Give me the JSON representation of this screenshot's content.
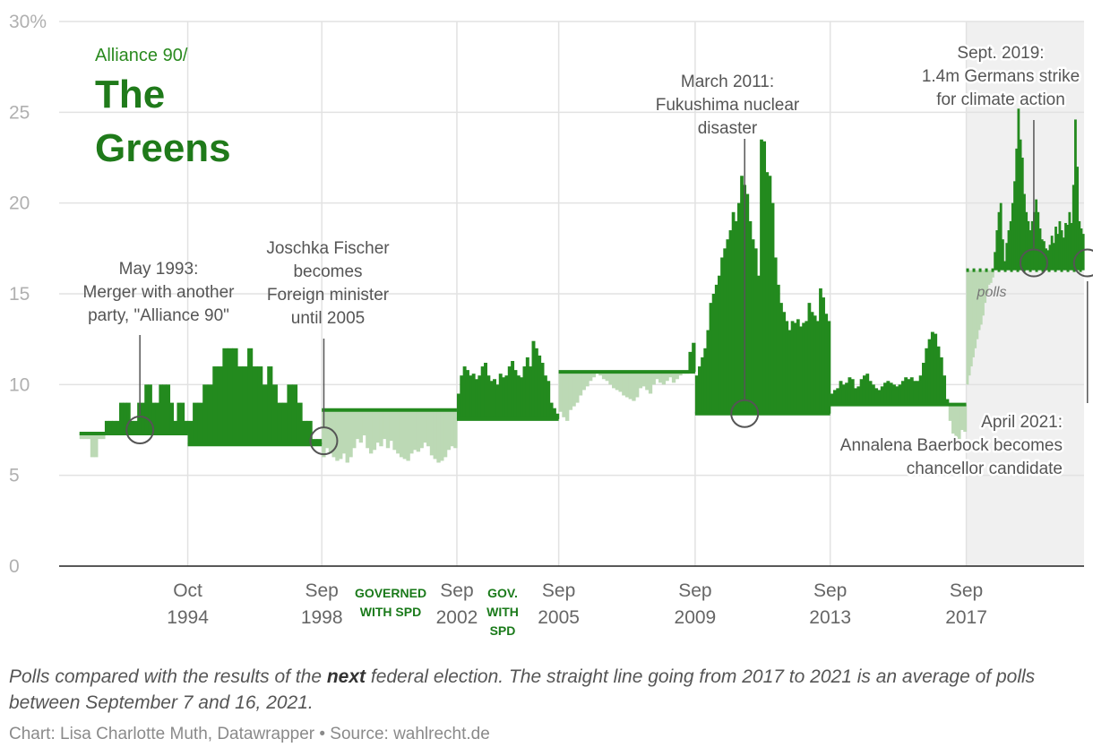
{
  "chart_data": {
    "type": "bar",
    "title_prefix": "Alliance 90/",
    "title_line1": "The",
    "title_line2": "Greens",
    "y_axis": {
      "min": 0,
      "max": 30,
      "ticks": [
        0,
        5,
        10,
        15,
        20,
        25,
        30
      ],
      "tick_labels": [
        "0",
        "5",
        "10",
        "15",
        "20",
        "25",
        "30%"
      ]
    },
    "x_ticks": [
      {
        "line1": "Oct",
        "line2": "1994",
        "x": 1994.79
      },
      {
        "line1": "Sep",
        "line2": "1998",
        "x": 1998.74
      },
      {
        "line1": "Sep",
        "line2": "2002",
        "x": 2002.72
      },
      {
        "line1": "Sep",
        "line2": "2005",
        "x": 2005.72
      },
      {
        "line1": "Sep",
        "line2": "2009",
        "x": 2009.74
      },
      {
        "line1": "Sep",
        "line2": "2013",
        "x": 2013.72
      },
      {
        "line1": "Sep",
        "line2": "2017",
        "x": 2017.73
      }
    ],
    "x_range": [
      1991.0,
      2021.2
    ],
    "polls_shaded_region": {
      "from": 2017.73,
      "to": 2021.2,
      "label": "polls"
    },
    "governed_periods": [
      {
        "label_lines": [
          "GOVERNED",
          "WITH SPD"
        ]
      },
      {
        "label_lines": [
          "GOV.",
          "WITH",
          "SPD"
        ]
      }
    ],
    "periods": [
      {
        "start": 1991.6,
        "end": 1994.79,
        "result": 7.3,
        "polls": [
          7.0,
          7.0,
          7.0,
          6.0,
          6.0,
          7.0,
          7.0,
          8.0,
          8.0,
          8.0,
          8.0,
          9.0,
          9.0,
          9.0,
          8.0,
          8.0,
          9.0,
          9.0,
          10.0,
          10.0,
          9.0,
          9.0,
          10.0,
          10.0,
          10.0,
          9.0,
          8.0,
          9.0,
          9.0,
          8.0
        ]
      },
      {
        "start": 1994.79,
        "end": 1998.74,
        "result": 6.7,
        "polls": [
          8.0,
          9.0,
          9.0,
          10.0,
          10.0,
          11.0,
          11.0,
          12.0,
          12.0,
          12.0,
          11.0,
          11.0,
          12.0,
          11.0,
          11.0,
          10.0,
          11.0,
          10.0,
          9.0,
          9.0,
          10.0,
          10.0,
          9.0,
          8.0,
          8.0,
          7.0,
          7.0
        ]
      },
      {
        "start": 1998.74,
        "end": 2002.72,
        "result": 8.6,
        "polls": [
          6.0,
          6.5,
          6.2,
          6.0,
          5.8,
          5.9,
          6.2,
          5.7,
          6.0,
          6.5,
          7.0,
          6.8,
          7.2,
          6.5,
          6.2,
          6.4,
          6.8,
          6.6,
          7.0,
          6.5,
          6.9,
          6.4,
          6.2,
          6.0,
          5.9,
          5.8,
          6.2,
          6.4,
          6.3,
          6.5,
          6.8,
          6.6,
          6.1,
          5.9,
          5.7,
          5.8,
          6.0,
          6.4,
          6.6,
          6.5
        ]
      },
      {
        "start": 2002.72,
        "end": 2005.72,
        "result": 8.1,
        "polls": [
          9.5,
          10.5,
          11.0,
          10.8,
          10.5,
          10.6,
          10.3,
          10.5,
          11.0,
          11.2,
          10.5,
          10.2,
          10.3,
          10.0,
          10.6,
          10.4,
          10.5,
          11.0,
          11.3,
          10.8,
          10.5,
          10.4,
          11.0,
          11.5,
          11.0,
          12.4,
          12.0,
          11.6,
          11.2,
          10.5,
          10.2,
          9.0,
          8.7,
          8.4
        ]
      },
      {
        "start": 2005.72,
        "end": 2009.74,
        "result": 10.7,
        "polls": [
          8.5,
          8.2,
          8.0,
          8.6,
          8.8,
          9.0,
          9.4,
          9.7,
          9.9,
          10.2,
          10.4,
          10.6,
          10.5,
          10.3,
          10.2,
          10.0,
          9.8,
          9.7,
          9.6,
          9.4,
          9.3,
          9.2,
          9.1,
          9.3,
          9.8,
          9.9,
          9.7,
          9.5,
          10.0,
          10.3,
          10.1,
          10.0,
          10.2,
          10.4,
          10.1,
          10.3,
          10.5,
          10.6,
          10.6,
          11.8,
          12.3
        ]
      },
      {
        "start": 2009.74,
        "end": 2013.72,
        "result": 8.4,
        "polls": [
          10.5,
          11.0,
          11.5,
          12.0,
          13.0,
          14.5,
          15.0,
          15.5,
          16.0,
          17.0,
          17.5,
          18.0,
          18.5,
          19.5,
          19.0,
          20.0,
          21.5,
          21.0,
          20.5,
          19.0,
          18.0,
          17.5,
          16.0,
          23.5,
          23.4,
          21.7,
          21.5,
          20.0,
          17.0,
          15.5,
          14.5,
          14.0,
          13.5,
          13.0,
          13.5,
          13.4,
          13.6,
          13.2,
          13.4,
          13.5,
          14.5,
          14.0,
          13.8,
          13.5,
          15.3,
          14.8,
          13.9,
          13.5
        ]
      },
      {
        "start": 2013.72,
        "end": 2017.73,
        "result": 8.9,
        "polls": [
          9.5,
          9.7,
          9.8,
          10.2,
          10.0,
          10.1,
          10.4,
          10.3,
          9.8,
          9.9,
          10.3,
          10.5,
          10.6,
          10.2,
          10.0,
          9.8,
          9.7,
          9.9,
          10.1,
          10.2,
          10.1,
          10.0,
          9.9,
          10.0,
          10.2,
          10.4,
          10.3,
          10.4,
          10.2,
          10.2,
          10.5,
          11.2,
          12.0,
          12.5,
          12.9,
          12.8,
          12.1,
          11.5,
          10.5,
          9.2,
          8.0,
          7.3,
          7.1,
          7.0,
          7.5,
          7.4
        ]
      },
      {
        "start": 2017.73,
        "end": 2021.2,
        "result": 16.3,
        "polls": [
          10.0,
          10.5,
          11.0,
          11.5,
          12.0,
          12.5,
          13.0,
          13.3,
          13.8,
          14.5,
          15.0,
          15.5,
          15.6,
          15.9,
          17.3,
          18.5,
          19.5,
          20.0,
          18.0,
          16.8,
          17.8,
          18.5,
          19.0,
          20.0,
          21.2,
          23.0,
          25.2,
          23.5,
          22.5,
          20.5,
          19.5,
          19.0,
          18.5,
          19.0,
          19.5,
          20.2,
          19.5,
          18.6,
          18.0,
          17.9,
          17.5,
          17.4,
          17.7,
          18.2,
          17.8,
          18.7,
          18.3,
          19.0,
          18.5,
          18.1,
          18.9,
          18.8,
          19.5,
          18.9,
          21.0,
          24.6,
          22.0,
          19.0,
          18.6,
          18.3
        ]
      }
    ],
    "annotations": [
      {
        "lines": [
          "May 1993:",
          "Merger with another",
          "party, \"Alliance 90\""
        ],
        "x": 1993.38,
        "y": 7.5
      },
      {
        "lines": [
          "Joschka Fischer",
          "becomes",
          "Foreign minister",
          "until 2005"
        ],
        "x": 1998.8,
        "y": 6.9
      },
      {
        "lines": [
          "March 2011:",
          "Fukushima nuclear",
          "disaster"
        ],
        "x": 2011.2,
        "y": 8.4
      },
      {
        "lines": [
          "Sept. 2019:",
          "1.4m Germans strike",
          "for climate action"
        ],
        "x": 2019.72,
        "y": 16.7
      },
      {
        "lines": [
          "April 2021:",
          "Annalena Baerbock becomes",
          "chancellor candidate"
        ],
        "x": 2021.3,
        "y": 16.7
      }
    ],
    "colors": {
      "governed_bar": "#238a1e",
      "opposition_bar": "#bcd9b5",
      "result_line": "#238a1e",
      "title": "#1f7a1a",
      "polls_shade": "#f0f0f0"
    }
  },
  "notes": {
    "part1": "Polls compared with the results of the ",
    "emphasis": "next",
    "part2": " federal election. The straight line going from 2017 to 2021 is an average of polls between September 7 and 16, 2021."
  },
  "credit": "Chart: Lisa Charlotte Muth, Datawrapper • Source: wahlrecht.de"
}
